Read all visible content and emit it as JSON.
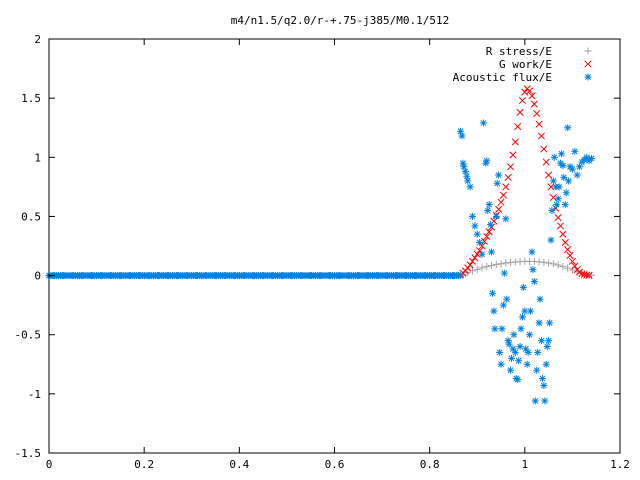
{
  "chart_data": {
    "type": "scatter",
    "title": "m4/n1.5/q2.0/r-+.75-j385/M0.1/512",
    "xlabel": "",
    "ylabel": "",
    "xlim": [
      0,
      1.2
    ],
    "ylim": [
      -1.5,
      2
    ],
    "grid": false,
    "legend_position": "top-right",
    "x_ticks": [
      {
        "value": 0,
        "label": "0"
      },
      {
        "value": 0.2,
        "label": "0.2"
      },
      {
        "value": 0.4,
        "label": "0.4"
      },
      {
        "value": 0.6,
        "label": "0.6"
      },
      {
        "value": 0.8,
        "label": "0.8"
      },
      {
        "value": 1,
        "label": "1"
      },
      {
        "value": 1.2,
        "label": "1.2"
      }
    ],
    "y_ticks": [
      {
        "value": -1.5,
        "label": "-1.5"
      },
      {
        "value": -1,
        "label": "-1"
      },
      {
        "value": -0.5,
        "label": "-0.5"
      },
      {
        "value": 0,
        "label": "0"
      },
      {
        "value": 0.5,
        "label": "0.5"
      },
      {
        "value": 1,
        "label": "1"
      },
      {
        "value": 1.5,
        "label": "1.5"
      },
      {
        "value": 2,
        "label": "2"
      }
    ],
    "series": [
      {
        "name": "R stress/E",
        "marker": "plus",
        "color": "#a0a0a0",
        "points": [
          [
            0.0,
            0
          ],
          [
            0.02,
            0
          ],
          [
            0.04,
            0
          ],
          [
            0.06,
            0
          ],
          [
            0.08,
            0
          ],
          [
            0.1,
            0
          ],
          [
            0.12,
            0
          ],
          [
            0.14,
            0
          ],
          [
            0.16,
            0
          ],
          [
            0.18,
            0
          ],
          [
            0.2,
            0
          ],
          [
            0.22,
            0
          ],
          [
            0.24,
            0
          ],
          [
            0.26,
            0
          ],
          [
            0.28,
            0
          ],
          [
            0.3,
            0
          ],
          [
            0.32,
            0
          ],
          [
            0.34,
            0
          ],
          [
            0.36,
            0
          ],
          [
            0.38,
            0
          ],
          [
            0.4,
            0
          ],
          [
            0.42,
            0
          ],
          [
            0.44,
            0
          ],
          [
            0.46,
            0
          ],
          [
            0.48,
            0
          ],
          [
            0.5,
            0
          ],
          [
            0.52,
            0
          ],
          [
            0.54,
            0
          ],
          [
            0.56,
            0
          ],
          [
            0.58,
            0
          ],
          [
            0.6,
            0
          ],
          [
            0.62,
            0
          ],
          [
            0.64,
            0
          ],
          [
            0.66,
            0
          ],
          [
            0.68,
            0
          ],
          [
            0.7,
            0
          ],
          [
            0.72,
            0
          ],
          [
            0.74,
            0
          ],
          [
            0.76,
            0
          ],
          [
            0.78,
            0
          ],
          [
            0.8,
            0
          ],
          [
            0.82,
            0
          ],
          [
            0.84,
            0
          ],
          [
            0.86,
            0
          ],
          [
            0.87,
            0.008
          ],
          [
            0.88,
            0.025
          ],
          [
            0.89,
            0.04
          ],
          [
            0.9,
            0.053
          ],
          [
            0.91,
            0.065
          ],
          [
            0.92,
            0.076
          ],
          [
            0.93,
            0.085
          ],
          [
            0.94,
            0.093
          ],
          [
            0.95,
            0.1
          ],
          [
            0.96,
            0.106
          ],
          [
            0.97,
            0.111
          ],
          [
            0.98,
            0.115
          ],
          [
            0.99,
            0.118
          ],
          [
            1.0,
            0.12
          ],
          [
            1.01,
            0.12
          ],
          [
            1.02,
            0.119
          ],
          [
            1.03,
            0.116
          ],
          [
            1.04,
            0.112
          ],
          [
            1.05,
            0.106
          ],
          [
            1.06,
            0.099
          ],
          [
            1.07,
            0.089
          ],
          [
            1.08,
            0.077
          ],
          [
            1.09,
            0.063
          ],
          [
            1.1,
            0.047
          ],
          [
            1.11,
            0.032
          ],
          [
            1.12,
            0.018
          ],
          [
            1.13,
            0.008
          ],
          [
            1.14,
            0.002
          ]
        ]
      },
      {
        "name": "G work/E",
        "marker": "cross",
        "color": "#ff0000",
        "points": [
          [
            0.865,
            0.005
          ],
          [
            0.87,
            0.02
          ],
          [
            0.875,
            0.04
          ],
          [
            0.88,
            0.065
          ],
          [
            0.885,
            0.09
          ],
          [
            0.89,
            0.12
          ],
          [
            0.895,
            0.15
          ],
          [
            0.9,
            0.18
          ],
          [
            0.905,
            0.21
          ],
          [
            0.91,
            0.25
          ],
          [
            0.915,
            0.29
          ],
          [
            0.92,
            0.33
          ],
          [
            0.925,
            0.37
          ],
          [
            0.93,
            0.41
          ],
          [
            0.935,
            0.46
          ],
          [
            0.94,
            0.51
          ],
          [
            0.945,
            0.56
          ],
          [
            0.95,
            0.62
          ],
          [
            0.955,
            0.68
          ],
          [
            0.96,
            0.75
          ],
          [
            0.965,
            0.83
          ],
          [
            0.97,
            0.92
          ],
          [
            0.975,
            1.02
          ],
          [
            0.98,
            1.13
          ],
          [
            0.985,
            1.26
          ],
          [
            0.99,
            1.38
          ],
          [
            0.995,
            1.48
          ],
          [
            1.0,
            1.55
          ],
          [
            1.005,
            1.58
          ],
          [
            1.01,
            1.56
          ],
          [
            1.015,
            1.52
          ],
          [
            1.02,
            1.45
          ],
          [
            1.025,
            1.37
          ],
          [
            1.03,
            1.28
          ],
          [
            1.035,
            1.18
          ],
          [
            1.04,
            1.07
          ],
          [
            1.045,
            0.96
          ],
          [
            1.05,
            0.85
          ],
          [
            1.055,
            0.75
          ],
          [
            1.06,
            0.66
          ],
          [
            1.065,
            0.57
          ],
          [
            1.07,
            0.49
          ],
          [
            1.075,
            0.42
          ],
          [
            1.08,
            0.35
          ],
          [
            1.085,
            0.28
          ],
          [
            1.09,
            0.22
          ],
          [
            1.095,
            0.17
          ],
          [
            1.1,
            0.12
          ],
          [
            1.105,
            0.08
          ],
          [
            1.11,
            0.05
          ],
          [
            1.115,
            0.03
          ],
          [
            1.12,
            0.015
          ],
          [
            1.125,
            0.008
          ],
          [
            1.13,
            0.004
          ],
          [
            1.135,
            0.001
          ]
        ]
      },
      {
        "name": "Acoustic flux/E",
        "marker": "star",
        "color": "#0080e0",
        "points": [
          [
            0.0,
            0
          ],
          [
            0.01,
            0
          ],
          [
            0.02,
            0
          ],
          [
            0.03,
            0
          ],
          [
            0.04,
            0
          ],
          [
            0.05,
            0
          ],
          [
            0.06,
            0
          ],
          [
            0.07,
            0
          ],
          [
            0.08,
            0
          ],
          [
            0.09,
            0
          ],
          [
            0.1,
            0
          ],
          [
            0.11,
            0
          ],
          [
            0.12,
            0
          ],
          [
            0.13,
            0
          ],
          [
            0.14,
            0
          ],
          [
            0.15,
            0
          ],
          [
            0.16,
            0
          ],
          [
            0.17,
            0
          ],
          [
            0.18,
            0
          ],
          [
            0.19,
            0
          ],
          [
            0.2,
            0
          ],
          [
            0.21,
            0
          ],
          [
            0.22,
            0
          ],
          [
            0.23,
            0
          ],
          [
            0.24,
            0
          ],
          [
            0.25,
            0
          ],
          [
            0.26,
            0
          ],
          [
            0.27,
            0
          ],
          [
            0.28,
            0
          ],
          [
            0.29,
            0
          ],
          [
            0.3,
            0
          ],
          [
            0.31,
            0
          ],
          [
            0.32,
            0
          ],
          [
            0.33,
            0
          ],
          [
            0.34,
            0
          ],
          [
            0.35,
            0
          ],
          [
            0.36,
            0
          ],
          [
            0.37,
            0
          ],
          [
            0.38,
            0
          ],
          [
            0.39,
            0
          ],
          [
            0.4,
            0
          ],
          [
            0.41,
            0
          ],
          [
            0.42,
            0
          ],
          [
            0.43,
            0
          ],
          [
            0.44,
            0
          ],
          [
            0.45,
            0
          ],
          [
            0.46,
            0
          ],
          [
            0.47,
            0
          ],
          [
            0.48,
            0
          ],
          [
            0.49,
            0
          ],
          [
            0.5,
            0
          ],
          [
            0.51,
            0
          ],
          [
            0.52,
            0
          ],
          [
            0.53,
            0
          ],
          [
            0.54,
            0
          ],
          [
            0.55,
            0
          ],
          [
            0.56,
            0
          ],
          [
            0.57,
            0
          ],
          [
            0.58,
            0
          ],
          [
            0.59,
            0
          ],
          [
            0.6,
            0
          ],
          [
            0.61,
            0
          ],
          [
            0.62,
            0
          ],
          [
            0.63,
            0
          ],
          [
            0.64,
            0
          ],
          [
            0.65,
            0
          ],
          [
            0.66,
            0
          ],
          [
            0.67,
            0
          ],
          [
            0.68,
            0
          ],
          [
            0.69,
            0
          ],
          [
            0.7,
            0
          ],
          [
            0.71,
            0
          ],
          [
            0.72,
            0
          ],
          [
            0.73,
            0
          ],
          [
            0.74,
            0
          ],
          [
            0.75,
            0
          ],
          [
            0.76,
            0
          ],
          [
            0.77,
            0
          ],
          [
            0.78,
            0
          ],
          [
            0.79,
            0
          ],
          [
            0.8,
            0
          ],
          [
            0.81,
            0
          ],
          [
            0.82,
            0
          ],
          [
            0.83,
            0
          ],
          [
            0.84,
            0
          ],
          [
            0.85,
            0
          ],
          [
            0.86,
            0
          ],
          [
            0.865,
            1.22
          ],
          [
            0.868,
            1.18
          ],
          [
            0.87,
            0.95
          ],
          [
            0.872,
            0.92
          ],
          [
            0.875,
            0.88
          ],
          [
            0.878,
            0.84
          ],
          [
            0.88,
            0.8
          ],
          [
            0.885,
            0.75
          ],
          [
            0.89,
            0.5
          ],
          [
            0.895,
            0.42
          ],
          [
            0.9,
            0.35
          ],
          [
            0.905,
            0.28
          ],
          [
            0.91,
            0.18
          ],
          [
            0.913,
            1.29
          ],
          [
            0.918,
            0.95
          ],
          [
            0.92,
            0.97
          ],
          [
            0.922,
            0.55
          ],
          [
            0.925,
            0.6
          ],
          [
            0.928,
            0.43
          ],
          [
            0.93,
            0.2
          ],
          [
            0.932,
            -0.15
          ],
          [
            0.935,
            -0.3
          ],
          [
            0.937,
            -0.45
          ],
          [
            0.94,
            0.5
          ],
          [
            0.942,
            0.78
          ],
          [
            0.945,
            0.85
          ],
          [
            0.947,
            -0.65
          ],
          [
            0.95,
            -0.75
          ],
          [
            0.952,
            -0.45
          ],
          [
            0.955,
            -0.25
          ],
          [
            0.957,
            0.02
          ],
          [
            0.96,
            0.48
          ],
          [
            0.962,
            -0.2
          ],
          [
            0.965,
            -0.55
          ],
          [
            0.967,
            -0.58
          ],
          [
            0.97,
            -0.8
          ],
          [
            0.972,
            -0.7
          ],
          [
            0.975,
            -0.62
          ],
          [
            0.977,
            -0.5
          ],
          [
            0.98,
            -0.65
          ],
          [
            0.982,
            -0.87
          ],
          [
            0.985,
            -0.88
          ],
          [
            0.987,
            -0.72
          ],
          [
            0.99,
            -0.6
          ],
          [
            0.992,
            -0.45
          ],
          [
            0.995,
            -0.35
          ],
          [
            0.997,
            -0.1
          ],
          [
            1.0,
            -0.3
          ],
          [
            1.002,
            -0.62
          ],
          [
            1.005,
            -0.75
          ],
          [
            1.007,
            -0.65
          ],
          [
            1.01,
            -0.5
          ],
          [
            1.012,
            -0.3
          ],
          [
            1.015,
            0.2
          ],
          [
            1.017,
            0.05
          ],
          [
            1.02,
            -0.05
          ],
          [
            1.022,
            -1.06
          ],
          [
            1.025,
            -0.8
          ],
          [
            1.027,
            -0.65
          ],
          [
            1.03,
            -0.4
          ],
          [
            1.032,
            -0.2
          ],
          [
            1.035,
            -0.55
          ],
          [
            1.037,
            -0.87
          ],
          [
            1.04,
            -0.93
          ],
          [
            1.042,
            -1.06
          ],
          [
            1.045,
            -0.75
          ],
          [
            1.047,
            -0.6
          ],
          [
            1.05,
            -0.55
          ],
          [
            1.052,
            -0.4
          ],
          [
            1.055,
            0.3
          ],
          [
            1.057,
            0.55
          ],
          [
            1.06,
            0.8
          ],
          [
            1.062,
            1.0
          ],
          [
            1.065,
            0.75
          ],
          [
            1.067,
            0.6
          ],
          [
            1.07,
            0.65
          ],
          [
            1.072,
            0.75
          ],
          [
            1.075,
            0.95
          ],
          [
            1.077,
            1.03
          ],
          [
            1.08,
            0.93
          ],
          [
            1.082,
            0.83
          ],
          [
            1.085,
            0.6
          ],
          [
            1.087,
            0.7
          ],
          [
            1.09,
            1.25
          ],
          [
            1.092,
            0.8
          ],
          [
            1.095,
            0.92
          ],
          [
            1.1,
            0.9
          ],
          [
            1.105,
            1.05
          ],
          [
            1.11,
            0.85
          ],
          [
            1.115,
            0.92
          ],
          [
            1.12,
            0.96
          ],
          [
            1.125,
            0.98
          ],
          [
            1.13,
            1.0
          ],
          [
            1.135,
            0.97
          ],
          [
            1.14,
            0.99
          ]
        ]
      }
    ]
  }
}
